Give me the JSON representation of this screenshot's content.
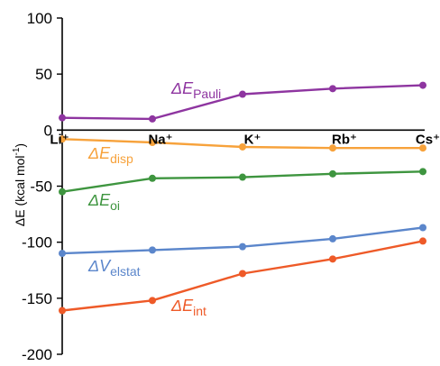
{
  "chart_data": {
    "type": "line",
    "ylabel_parts": {
      "delta": "ΔE",
      "unit": "(kcal mol",
      "exp": "-1",
      "close": ")"
    },
    "ylim": [
      -200,
      100
    ],
    "yticks": [
      "100",
      "50",
      "0",
      "-50",
      "-100",
      "-150",
      "-200"
    ],
    "ytick_values": [
      100,
      50,
      0,
      -50,
      -100,
      -150,
      -200
    ],
    "grid": false,
    "categories": [
      "Li⁺",
      "Na⁺",
      "K⁺",
      "Rb⁺",
      "Cs⁺"
    ],
    "series": [
      {
        "key": "pauli",
        "label_main": "ΔE",
        "label_sub": "Pauli",
        "color": "#8E35A0",
        "values": [
          11,
          10,
          32,
          37,
          40
        ]
      },
      {
        "key": "disp",
        "label_main": "ΔE",
        "label_sub": "disp",
        "color": "#F7A23B",
        "values": [
          -8,
          -11,
          -15,
          -16,
          -16
        ]
      },
      {
        "key": "oi",
        "label_main": "ΔE",
        "label_sub": "oi",
        "color": "#3E953F",
        "values": [
          -55,
          -43,
          -42,
          -39,
          -37
        ]
      },
      {
        "key": "elstat",
        "label_main": "ΔV",
        "label_sub": "elstat",
        "color": "#5B86CB",
        "values": [
          -110,
          -107,
          -104,
          -97,
          -87
        ]
      },
      {
        "key": "int",
        "label_main": "ΔE",
        "label_sub": "int",
        "color": "#EE5A28",
        "values": [
          -161,
          -152,
          -128,
          -115,
          -99
        ]
      }
    ]
  }
}
